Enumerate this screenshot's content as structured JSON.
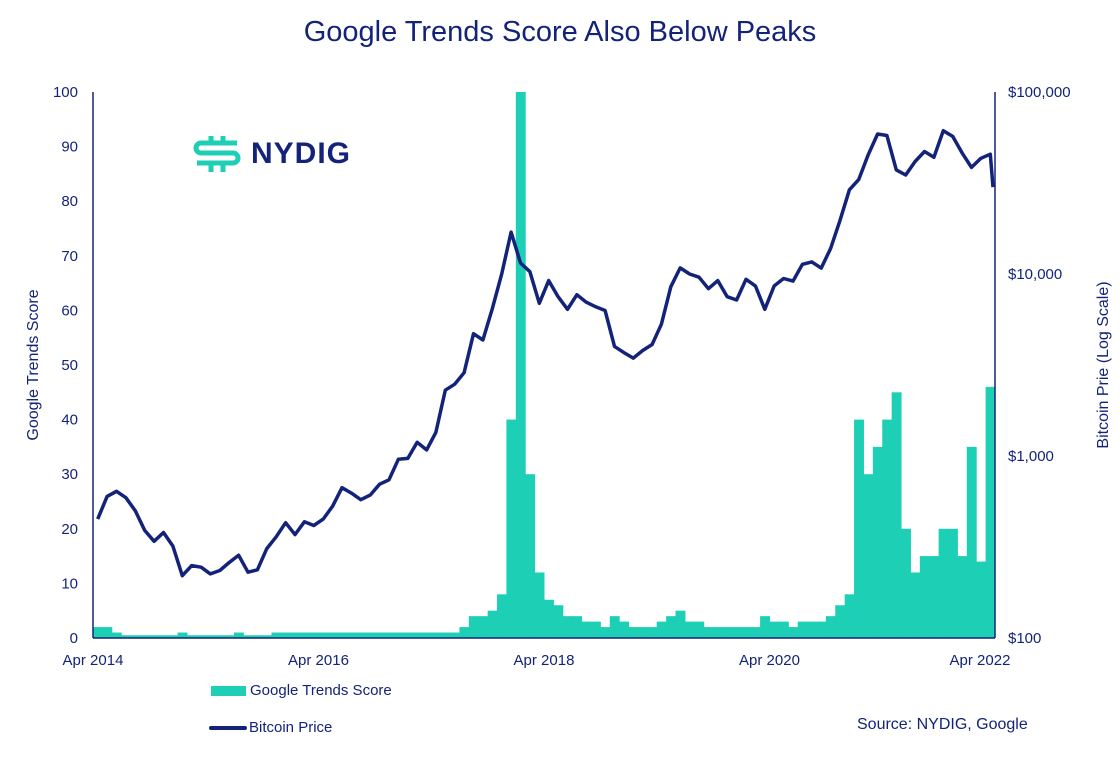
{
  "logo_text": "NYDIG",
  "source": "Source: NYDIG, Google",
  "colors": {
    "trends": "#1dcfb5",
    "price": "#14237a"
  },
  "chart_data": {
    "type": "bar+line",
    "title": "Google Trends Score Also Below Peaks",
    "ylabel_left": "Google Trends Score",
    "ylabel_right": "Bitcoin Prie (Log Scale)",
    "ylim_left": [
      0,
      100
    ],
    "ylim_right": [
      100,
      100000
    ],
    "right_scale": "log",
    "left_ticks": [
      "0",
      "10",
      "20",
      "30",
      "40",
      "50",
      "60",
      "70",
      "80",
      "90",
      "100"
    ],
    "right_ticks": [
      "$100",
      "$1,000",
      "$10,000",
      "$100,000"
    ],
    "x_ticks": [
      "Apr 2014",
      "Apr 2016",
      "Apr 2018",
      "Apr 2020",
      "Apr 2022"
    ],
    "x_start": "2014-04",
    "legend": {
      "position": "bottom-left",
      "entries": [
        "Google Trends Score",
        "Bitcoin Price"
      ]
    },
    "grid": false,
    "series": [
      {
        "name": "Google Trends Score",
        "type": "bar",
        "months": [
          "2014-04",
          "2014-05",
          "2014-06",
          "2014-07",
          "2014-08",
          "2014-09",
          "2014-10",
          "2014-11",
          "2014-12",
          "2015-01",
          "2015-02",
          "2015-03",
          "2015-04",
          "2015-05",
          "2015-06",
          "2015-07",
          "2015-08",
          "2015-09",
          "2015-10",
          "2015-11",
          "2015-12",
          "2016-01",
          "2016-02",
          "2016-03",
          "2016-04",
          "2016-05",
          "2016-06",
          "2016-07",
          "2016-08",
          "2016-09",
          "2016-10",
          "2016-11",
          "2016-12",
          "2017-01",
          "2017-02",
          "2017-03",
          "2017-04",
          "2017-05",
          "2017-06",
          "2017-07",
          "2017-08",
          "2017-09",
          "2017-10",
          "2017-11",
          "2017-12",
          "2018-01",
          "2018-02",
          "2018-03",
          "2018-04",
          "2018-05",
          "2018-06",
          "2018-07",
          "2018-08",
          "2018-09",
          "2018-10",
          "2018-11",
          "2018-12",
          "2019-01",
          "2019-02",
          "2019-03",
          "2019-04",
          "2019-05",
          "2019-06",
          "2019-07",
          "2019-08",
          "2019-09",
          "2019-10",
          "2019-11",
          "2019-12",
          "2020-01",
          "2020-02",
          "2020-03",
          "2020-04",
          "2020-05",
          "2020-06",
          "2020-07",
          "2020-08",
          "2020-09",
          "2020-10",
          "2020-11",
          "2020-12",
          "2021-01",
          "2021-02",
          "2021-03",
          "2021-04",
          "2021-05",
          "2021-06",
          "2021-07",
          "2021-08",
          "2021-09",
          "2021-10",
          "2021-11",
          "2021-12",
          "2022-01",
          "2022-02",
          "2022-03",
          "2022-04"
        ],
        "values": [
          2,
          2,
          1,
          0.5,
          0.5,
          0.5,
          0.5,
          0.5,
          0.5,
          1,
          0.5,
          0.5,
          0.5,
          0.5,
          0.5,
          1,
          0.5,
          0.5,
          0.5,
          1,
          1,
          1,
          1,
          1,
          1,
          1,
          1,
          1,
          1,
          1,
          1,
          1,
          1,
          1,
          1,
          1,
          1,
          1,
          1,
          2,
          4,
          4,
          5,
          8,
          40,
          100,
          30,
          12,
          7,
          6,
          4,
          4,
          3,
          3,
          2,
          4,
          3,
          2,
          2,
          2,
          3,
          4,
          5,
          3,
          3,
          2,
          2,
          2,
          2,
          2,
          2,
          4,
          3,
          3,
          2,
          3,
          3,
          3,
          4,
          6,
          8,
          40,
          30,
          35,
          40,
          45,
          20,
          12,
          15,
          15,
          20,
          20,
          15,
          35,
          14,
          12,
          46
        ]
      },
      {
        "name": "Bitcoin Price",
        "type": "line",
        "months": [
          "2014-04",
          "2014-05",
          "2014-06",
          "2014-07",
          "2014-08",
          "2014-09",
          "2014-10",
          "2014-11",
          "2014-12",
          "2015-01",
          "2015-02",
          "2015-03",
          "2015-04",
          "2015-05",
          "2015-06",
          "2015-07",
          "2015-08",
          "2015-09",
          "2015-10",
          "2015-11",
          "2015-12",
          "2016-01",
          "2016-02",
          "2016-03",
          "2016-04",
          "2016-05",
          "2016-06",
          "2016-07",
          "2016-08",
          "2016-09",
          "2016-10",
          "2016-11",
          "2016-12",
          "2017-01",
          "2017-02",
          "2017-03",
          "2017-04",
          "2017-05",
          "2017-06",
          "2017-07",
          "2017-08",
          "2017-09",
          "2017-10",
          "2017-11",
          "2017-12",
          "2018-01",
          "2018-02",
          "2018-03",
          "2018-04",
          "2018-05",
          "2018-06",
          "2018-07",
          "2018-08",
          "2018-09",
          "2018-10",
          "2018-11",
          "2018-12",
          "2019-01",
          "2019-02",
          "2019-03",
          "2019-04",
          "2019-05",
          "2019-06",
          "2019-07",
          "2019-08",
          "2019-09",
          "2019-10",
          "2019-11",
          "2019-12",
          "2020-01",
          "2020-02",
          "2020-03",
          "2020-04",
          "2020-05",
          "2020-06",
          "2020-07",
          "2020-08",
          "2020-09",
          "2020-10",
          "2020-11",
          "2020-12",
          "2021-01",
          "2021-02",
          "2021-03",
          "2021-04",
          "2021-05",
          "2021-06",
          "2021-07",
          "2021-08",
          "2021-09",
          "2021-10",
          "2021-11",
          "2021-12",
          "2022-01",
          "2022-02",
          "2022-03",
          "2022-04"
        ],
        "values": [
          450,
          600,
          640,
          590,
          500,
          390,
          340,
          380,
          320,
          220,
          250,
          245,
          225,
          235,
          260,
          285,
          230,
          237,
          310,
          360,
          430,
          370,
          435,
          415,
          450,
          530,
          670,
          625,
          575,
          610,
          700,
          740,
          960,
          970,
          1190,
          1080,
          1350,
          2300,
          2480,
          2870,
          4700,
          4340,
          6450,
          10000,
          17000,
          11500,
          10300,
          6900,
          9200,
          7500,
          6400,
          7700,
          7000,
          6600,
          6300,
          4000,
          3700,
          3450,
          3800,
          4100,
          5300,
          8500,
          10800,
          10000,
          9600,
          8300,
          9200,
          7500,
          7200,
          9350,
          8600,
          6400,
          8600,
          9450,
          9140,
          11300,
          11650,
          10780,
          13800,
          19700,
          29000,
          33100,
          45200,
          58800,
          57700,
          37300,
          35000,
          41500,
          47100,
          43800,
          61300,
          57000,
          46300,
          38500,
          43200,
          45500,
          30000
        ]
      }
    ]
  }
}
